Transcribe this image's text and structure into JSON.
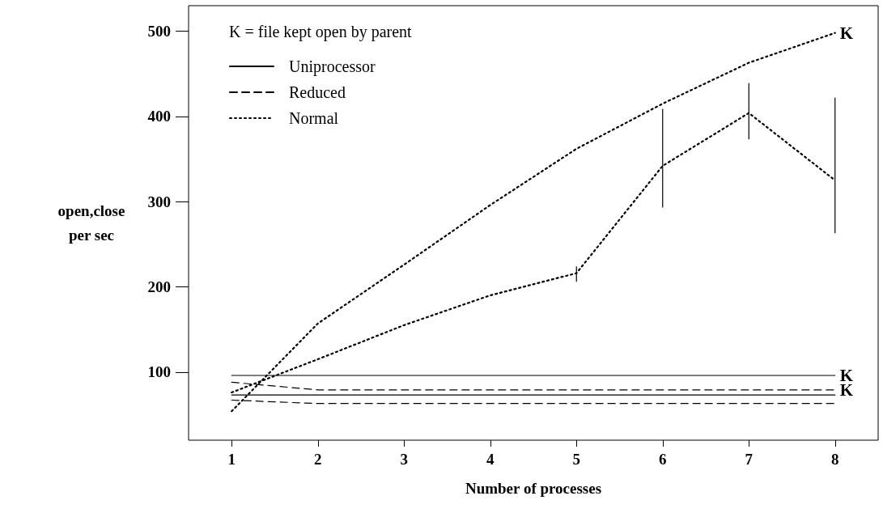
{
  "chart_data": {
    "type": "line",
    "xlabel": "Number of processes",
    "ylabel": "open,close\nper sec",
    "legend_title": "K = file kept open by parent",
    "x": [
      1,
      2,
      3,
      4,
      5,
      6,
      7,
      8
    ],
    "series": [
      {
        "name": "Uniprocessor",
        "color": "#000000",
        "line_style": "solid",
        "values": [
          73,
          73,
          73,
          73,
          73,
          73,
          73,
          73
        ]
      },
      {
        "name": "Reduced",
        "color": "#000000",
        "line_style": "dashed",
        "values": [
          67,
          63,
          63,
          63,
          63,
          63,
          63,
          63
        ]
      },
      {
        "name": "Normal",
        "color": "#000000",
        "line_style": "dotted",
        "values": [
          76,
          115,
          155,
          190,
          216,
          342,
          404,
          325
        ],
        "errors": [
          null,
          null,
          null,
          null,
          [
            206,
            224
          ],
          [
            293,
            409
          ],
          [
            373,
            439
          ],
          [
            263,
            422
          ]
        ]
      },
      {
        "color": "#000000",
        "line_style": "solid",
        "values": [
          96,
          96,
          96,
          96,
          96,
          96,
          96,
          96
        ],
        "value_labels": [
          null,
          null,
          null,
          null,
          null,
          null,
          null,
          "K"
        ]
      },
      {
        "color": "#000000",
        "line_style": "dashed",
        "values": [
          88,
          79,
          79,
          79,
          79,
          79,
          79,
          79
        ],
        "value_labels": [
          null,
          null,
          null,
          null,
          null,
          null,
          null,
          "K"
        ]
      },
      {
        "color": "#000000",
        "line_style": "dotted",
        "values": [
          54,
          157,
          226,
          296,
          362,
          415,
          463,
          498
        ],
        "value_labels": [
          null,
          null,
          null,
          null,
          null,
          null,
          null,
          "K"
        ]
      }
    ],
    "xlim": [
      0.5,
      8.5
    ],
    "xticks": [
      1,
      2,
      3,
      4,
      5,
      6,
      7,
      8
    ],
    "ylim": [
      20,
      530
    ],
    "yticks": [
      100,
      200,
      300,
      400,
      500
    ],
    "grid": false,
    "legend": "top left",
    "marker": "none"
  }
}
